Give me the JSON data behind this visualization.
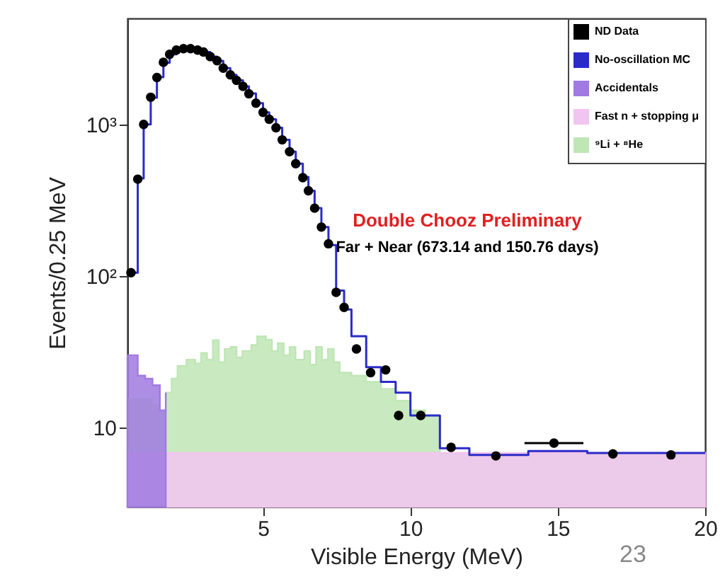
{
  "chart_data": {
    "type": "scatter",
    "xlabel": "Visible Energy (MeV)",
    "ylabel": "Events/0.25 MeV",
    "xlim": [
      0.4,
      20
    ],
    "xticks": [
      5,
      10,
      15,
      20
    ],
    "ylim": [
      3,
      5000
    ],
    "yticks": [
      10,
      {
        "value": 100,
        "label": "10²"
      },
      {
        "value": 1000,
        "label": "10³"
      }
    ],
    "log": "y",
    "grid": false,
    "legend": "top right",
    "annotations": [
      "Double Chooz Preliminary",
      "Far + Near (673.14 and 150.76 days)",
      "23"
    ],
    "series": [
      {
        "name": "ND Data",
        "color": "#000000",
        "marker": "circle",
        "x": [
          0.52,
          0.75,
          0.95,
          1.19,
          1.4,
          1.62,
          1.83,
          2.06,
          2.3,
          2.54,
          2.78,
          2.98,
          3.21,
          3.44,
          3.65,
          3.89,
          4.1,
          4.32,
          4.52,
          4.76,
          5.0,
          5.21,
          5.44,
          5.65,
          5.9,
          6.11,
          6.35,
          6.54,
          6.75,
          6.98,
          7.22,
          7.48,
          7.75,
          8.17,
          8.65,
          9.16,
          9.6,
          10.35,
          11.38,
          12.9,
          14.87,
          16.87,
          18.84
        ],
        "values": [
          105,
          435,
          1000,
          1510,
          2040,
          2570,
          2900,
          3090,
          3160,
          3160,
          3090,
          3000,
          2800,
          2630,
          2350,
          2120,
          1950,
          1780,
          1590,
          1380,
          1200,
          1080,
          950,
          790,
          660,
          550,
          445,
          365,
          280,
          210,
          163,
          78,
          62,
          33,
          23,
          24,
          12,
          12,
          7.4,
          6.5,
          7.9,
          6.7,
          6.6
        ],
        "xerrors": [
          null,
          null,
          null,
          null,
          null,
          null,
          null,
          null,
          null,
          null,
          null,
          null,
          null,
          null,
          null,
          null,
          null,
          null,
          null,
          null,
          null,
          null,
          null,
          null,
          null,
          null,
          null,
          null,
          null,
          null,
          null,
          null,
          null,
          null,
          null,
          null,
          null,
          null,
          null,
          null,
          1,
          null,
          null
        ]
      },
      {
        "name": "No-oscillation MC",
        "type": "step",
        "color": "#2b2bc8",
        "x": [
          0.4,
          0.52,
          0.75,
          0.95,
          1.19,
          1.4,
          1.62,
          1.83,
          2.06,
          2.3,
          2.54,
          2.78,
          2.98,
          3.21,
          3.44,
          3.65,
          3.89,
          4.1,
          4.32,
          4.52,
          4.76,
          5.0,
          5.21,
          5.44,
          5.65,
          5.9,
          6.11,
          6.35,
          6.54,
          6.75,
          6.98,
          7.22,
          7.48,
          7.75,
          8.0,
          8.5,
          9.0,
          9.5,
          10.0,
          10.5,
          11.0,
          12.0,
          14.0,
          16.0,
          20.0
        ],
        "values": [
          105,
          105,
          440,
          1000,
          1500,
          2050,
          2550,
          2900,
          3080,
          3150,
          3150,
          3080,
          3000,
          2800,
          2620,
          2350,
          2120,
          1950,
          1780,
          1600,
          1380,
          1200,
          1080,
          950,
          790,
          660,
          550,
          450,
          365,
          280,
          210,
          160,
          80,
          60,
          40,
          25,
          20,
          17,
          12,
          12,
          7.3,
          6.6,
          7.0,
          6.8,
          6.8
        ]
      },
      {
        "name": "Accidentals",
        "type": "area",
        "color": "#a07ae0",
        "x": [
          0.4,
          0.75,
          1.0,
          1.25,
          1.5,
          1.7
        ],
        "values": [
          30,
          22,
          21,
          19,
          13,
          17
        ]
      },
      {
        "name": "Fast n + stopping μ",
        "type": "area",
        "color": "#f2c4f0",
        "x": [
          0.4,
          20
        ],
        "values": [
          6.8,
          6.8
        ]
      },
      {
        "name": "⁹Li + ⁸He",
        "type": "area",
        "color": "#bfe6b5",
        "x": [
          0.4,
          1.25,
          1.5,
          1.7,
          1.9,
          2.1,
          2.4,
          2.7,
          2.9,
          3.1,
          3.3,
          3.5,
          3.7,
          3.9,
          4.1,
          4.3,
          4.6,
          4.8,
          5.1,
          5.3,
          5.5,
          5.7,
          5.9,
          6.1,
          6.4,
          6.6,
          6.8,
          7.0,
          7.2,
          7.4,
          7.6,
          8.0,
          8.5,
          9.0,
          9.5,
          10.0,
          10.5,
          11.0,
          20
        ],
        "values": [
          15.4,
          14,
          12.8,
          17,
          21,
          25.5,
          28,
          26.5,
          31,
          28,
          37.7,
          27,
          33,
          34,
          29,
          32,
          35,
          40,
          38,
          32,
          36,
          30,
          34,
          28,
          32,
          26,
          34,
          28,
          33,
          27,
          23,
          22,
          20,
          18,
          15,
          13,
          12,
          6.8,
          6.8
        ]
      }
    ]
  }
}
